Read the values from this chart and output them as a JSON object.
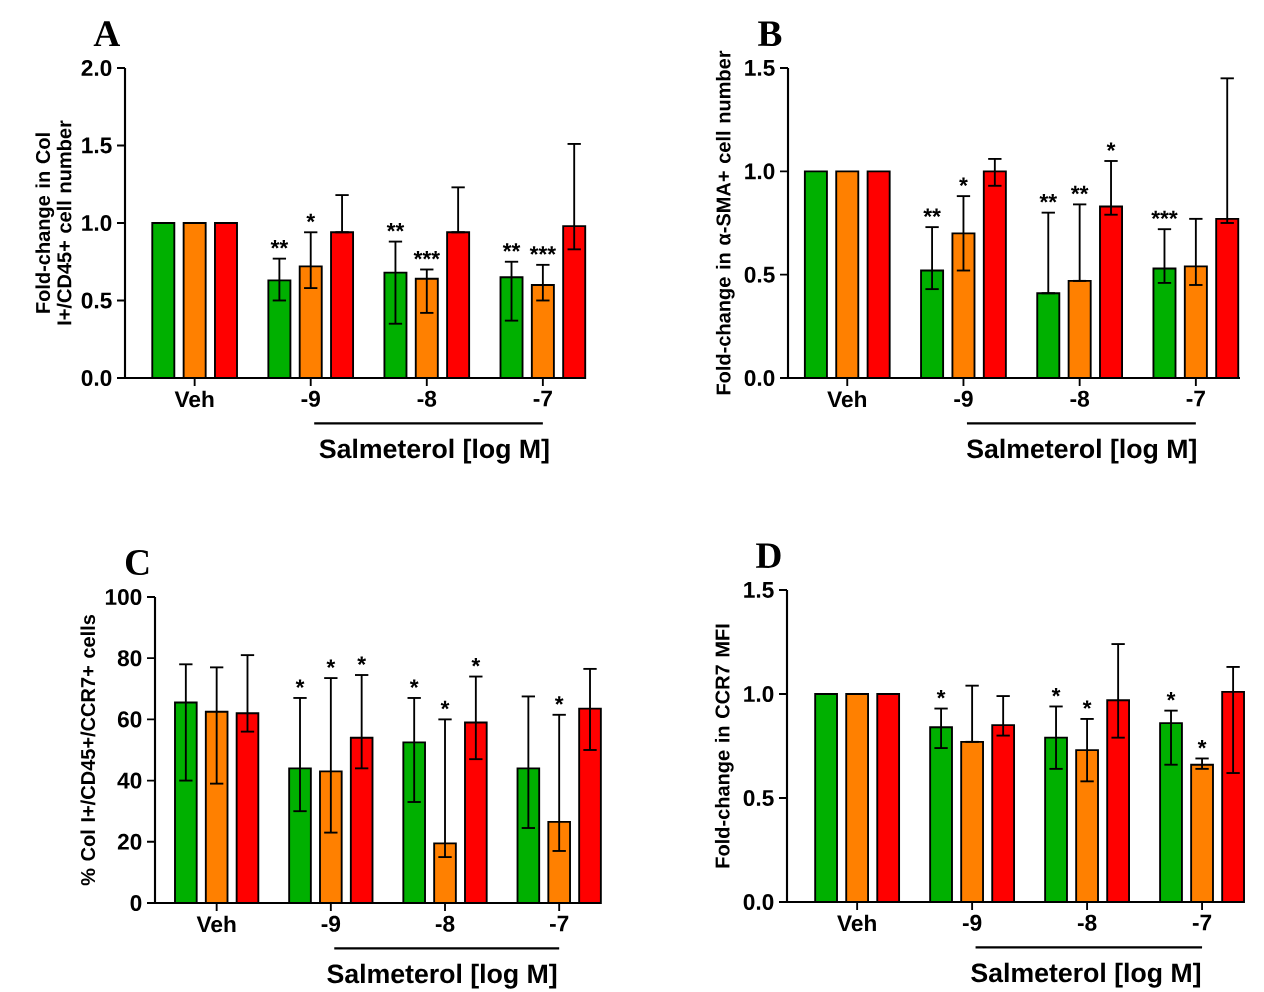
{
  "chart_data": [
    {
      "type": "bar",
      "title": "A",
      "ylabel": "Fold-change in Col I+/CD45+ cell number",
      "xlabel": "Salmeterol [log M]",
      "categories": [
        "Veh",
        "-9",
        "-8",
        "-7"
      ],
      "ylim": [
        0,
        2
      ],
      "yticks": [
        {
          "value": 0,
          "label": "0.0"
        },
        {
          "value": 0.5,
          "label": "0.5"
        },
        {
          "value": 1,
          "label": "1.0"
        },
        {
          "value": 1.5,
          "label": "1.5"
        },
        {
          "value": 2,
          "label": "2.0"
        }
      ],
      "grid": false,
      "series": [
        {
          "color": "#00b000",
          "values": [
            1,
            0.63,
            0.68,
            0.65
          ],
          "errors": [
            null,
            [
              0.5,
              0.77
            ],
            [
              0.35,
              0.88
            ],
            [
              0.37,
              0.75
            ]
          ]
        },
        {
          "color": "#ff8000",
          "values": [
            1,
            0.72,
            0.64,
            0.6
          ],
          "errors": [
            null,
            [
              0.58,
              0.94
            ],
            [
              0.42,
              0.7
            ],
            [
              0.5,
              0.73
            ]
          ]
        },
        {
          "color": "#ff0000",
          "values": [
            1,
            0.94,
            0.94,
            0.98
          ],
          "errors": [
            null,
            [
              0.94,
              1.18
            ],
            [
              0.94,
              1.23
            ],
            [
              0.83,
              1.51
            ]
          ]
        }
      ],
      "annotations": [
        "**",
        "*",
        "**",
        "***",
        "**",
        "***"
      ]
    },
    {
      "type": "bar",
      "title": "B",
      "ylabel": "Fold-change in α-SMA+ cell number",
      "xlabel": "Salmeterol [log M]",
      "categories": [
        "Veh",
        "-9",
        "-8",
        "-7"
      ],
      "ylim": [
        0,
        1.5
      ],
      "yticks": [
        {
          "value": 0,
          "label": "0.0"
        },
        {
          "value": 0.5,
          "label": "0.5"
        },
        {
          "value": 1,
          "label": "1.0"
        },
        {
          "value": 1.5,
          "label": "1.5"
        }
      ],
      "grid": false,
      "series": [
        {
          "color": "#00b000",
          "values": [
            1,
            0.52,
            0.41,
            0.53
          ],
          "errors": [
            null,
            [
              0.43,
              0.73
            ],
            [
              0.41,
              0.8
            ],
            [
              0.46,
              0.72
            ]
          ]
        },
        {
          "color": "#ff8000",
          "values": [
            1,
            0.7,
            0.47,
            0.54
          ],
          "errors": [
            null,
            [
              0.52,
              0.88
            ],
            [
              0.47,
              0.84
            ],
            [
              0.45,
              0.77
            ]
          ]
        },
        {
          "color": "#ff0000",
          "values": [
            1,
            1.0,
            0.83,
            0.77
          ],
          "errors": [
            null,
            [
              0.93,
              1.06
            ],
            [
              0.79,
              1.05
            ],
            [
              0.75,
              1.45
            ]
          ]
        }
      ],
      "annotations": [
        "**",
        "*",
        "**",
        "**",
        "*",
        "***"
      ]
    },
    {
      "type": "bar",
      "title": "C",
      "ylabel": "% Col I+/CD45+/CCR7+ cells",
      "xlabel": "Salmeterol [log M]",
      "categories": [
        "Veh",
        "-9",
        "-8",
        "-7"
      ],
      "ylim": [
        0,
        100
      ],
      "yticks": [
        0,
        20,
        40,
        60,
        80,
        100
      ],
      "grid": false,
      "series": [
        {
          "color": "#00b000",
          "values": [
            65.5,
            44,
            52.5,
            44
          ],
          "errors": [
            [
              40,
              78
            ],
            [
              30,
              67
            ],
            [
              33,
              67
            ],
            [
              24.5,
              67.5
            ]
          ]
        },
        {
          "color": "#ff8000",
          "values": [
            62.5,
            43,
            19.5,
            26.5
          ],
          "errors": [
            [
              39,
              77
            ],
            [
              23,
              73.5
            ],
            [
              15,
              60
            ],
            [
              17,
              61.5
            ]
          ]
        },
        {
          "color": "#ff0000",
          "values": [
            62,
            54,
            59,
            63.5
          ],
          "errors": [
            [
              56,
              81
            ],
            [
              44,
              74.5
            ],
            [
              47,
              74
            ],
            [
              50,
              76.5
            ]
          ]
        }
      ],
      "annotations": [
        "*",
        "*",
        "*",
        "*",
        "*",
        "*",
        "*"
      ]
    },
    {
      "type": "bar",
      "title": "D",
      "ylabel": "Fold-change in CCR7 MFI",
      "xlabel": "Salmeterol [log M]",
      "categories": [
        "Veh",
        "-9",
        "-8",
        "-7"
      ],
      "ylim": [
        0,
        1.5
      ],
      "yticks": [
        {
          "value": 0,
          "label": "0.0"
        },
        {
          "value": 0.5,
          "label": "0.5"
        },
        {
          "value": 1,
          "label": "1.0"
        },
        {
          "value": 1.5,
          "label": "1.5"
        }
      ],
      "grid": false,
      "series": [
        {
          "color": "#00b000",
          "values": [
            1,
            0.84,
            0.79,
            0.86
          ],
          "errors": [
            null,
            [
              0.74,
              0.93
            ],
            [
              0.64,
              0.94
            ],
            [
              0.66,
              0.92
            ]
          ]
        },
        {
          "color": "#ff8000",
          "values": [
            1,
            0.77,
            0.73,
            0.66
          ],
          "errors": [
            null,
            [
              0.77,
              1.04
            ],
            [
              0.58,
              0.88
            ],
            [
              0.64,
              0.69
            ]
          ]
        },
        {
          "color": "#ff0000",
          "values": [
            1,
            0.85,
            0.97,
            1.01
          ],
          "errors": [
            null,
            [
              0.8,
              0.99
            ],
            [
              0.79,
              1.24
            ],
            [
              0.62,
              1.13
            ]
          ]
        }
      ],
      "annotations": [
        "*",
        "*",
        "*",
        "*",
        "*"
      ]
    }
  ]
}
